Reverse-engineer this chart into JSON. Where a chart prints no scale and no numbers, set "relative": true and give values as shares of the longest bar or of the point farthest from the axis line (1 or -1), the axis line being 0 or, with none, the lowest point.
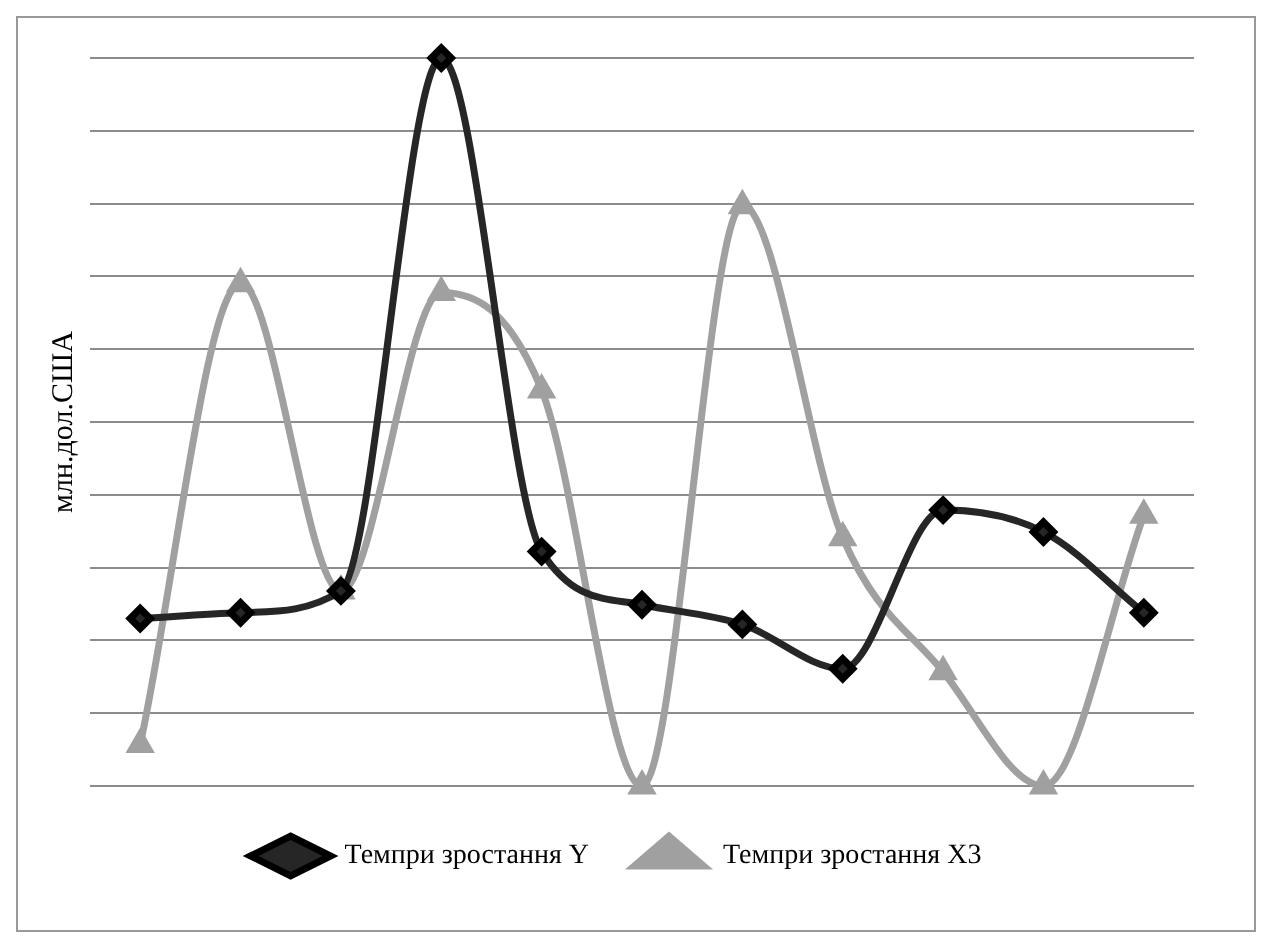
{
  "chart_data": {
    "type": "line",
    "relative": true,
    "ylabel": "млн.дол.США",
    "categories": [
      null,
      null,
      null,
      null,
      null,
      null,
      null,
      null,
      null,
      null,
      null
    ],
    "series": [
      {
        "name": "Темпри зростання Х3",
        "color": "#a0a0a0",
        "marker": "triangle",
        "values": [
          0.057,
          0.69,
          0.268,
          0.678,
          0.544,
          0,
          0.797,
          0.341,
          0.157,
          0,
          0.372
        ]
      },
      {
        "name": "Темпри зростання Y",
        "color": "#262626",
        "marker": "diamond",
        "values": [
          0.23,
          0.238,
          0.268,
          1,
          0.322,
          0.249,
          0.222,
          0.161,
          0.379,
          0.349,
          0.238
        ]
      }
    ],
    "grid": "y",
    "legend": "bottom"
  }
}
